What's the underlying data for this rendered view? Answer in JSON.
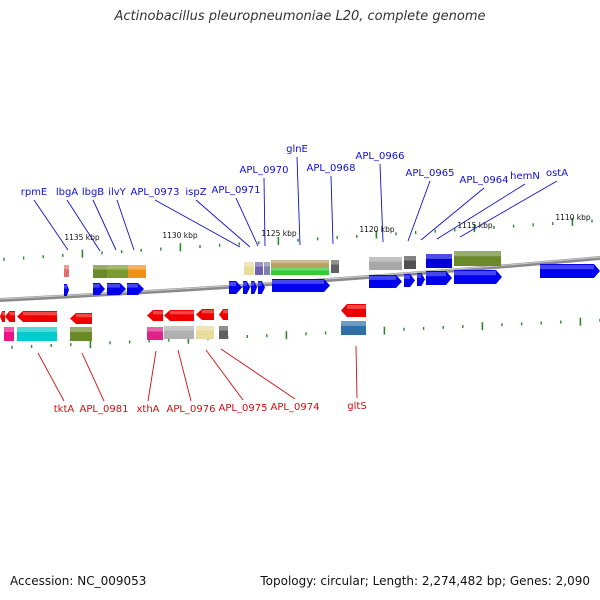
{
  "title": "Actinobacillus pleuropneumoniae L20, complete genome",
  "accession": "Accession: NC_009053",
  "topology": "Topology: circular; Length: 2,274,482 bp; Genes: 2,090",
  "colors": {
    "forward_label": "#1010cc",
    "reverse_label": "#cc1010",
    "forward_gene": "#0000ee",
    "reverse_gene": "#ee0000",
    "tick": "#2a8a2a",
    "backbone": "#888888"
  },
  "ruler_labels": [
    "1135 kbp",
    "1130 kbp",
    "1125 kbp",
    "1120 kbp",
    "1115 kbp",
    "1110 kbp"
  ],
  "forward_genes": [
    "rpmE",
    "lbgA",
    "lbgB",
    "ilvY",
    "APL_0973",
    "ispZ",
    "APL_0971",
    "APL_0970",
    "glnE",
    "APL_0968",
    "APL_0966",
    "APL_0965",
    "APL_0964",
    "hemN",
    "ostA"
  ],
  "reverse_genes": [
    "tktA",
    "APL_0981",
    "xthA",
    "APL_0976",
    "APL_0975",
    "APL_0974",
    "gltS"
  ]
}
